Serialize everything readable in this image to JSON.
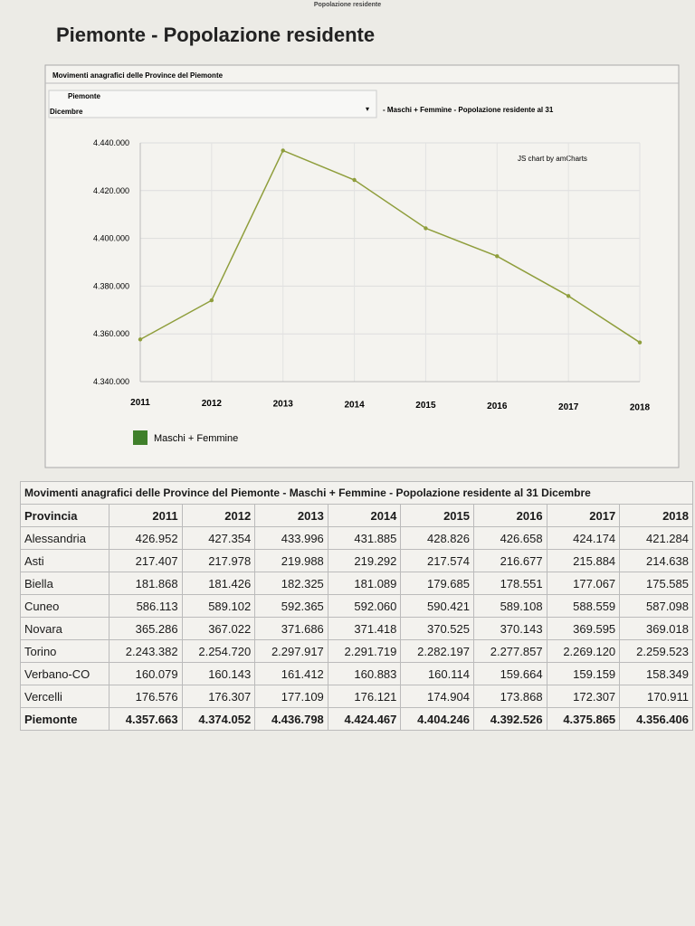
{
  "header": {
    "small_title": "Popolazione residente",
    "title": "Piemonte - Popolazione residente"
  },
  "chart_data": {
    "type": "line",
    "title": "Movimenti anagrafici delle Province del Piemonte",
    "controls": {
      "province": "Piemonte",
      "period": "Dicembre",
      "subtitle": "- Maschi + Femmine - Popolazione residente al 31"
    },
    "credit": "JS chart by amCharts",
    "categories": [
      "2011",
      "2012",
      "2013",
      "2014",
      "2015",
      "2016",
      "2017",
      "2018"
    ],
    "series": [
      {
        "name": "Maschi + Femmine",
        "color": "#8f9e3c",
        "values": [
          4357663,
          4374052,
          4436798,
          4424467,
          4404246,
          4392526,
          4375865,
          4356406
        ]
      }
    ],
    "legend_color": "#3f7f2a",
    "ylim": [
      4340000,
      4440000
    ],
    "yticks": [
      {
        "value": 4340000,
        "label": "4.340.000"
      },
      {
        "value": 4360000,
        "label": "4.360.000"
      },
      {
        "value": 4380000,
        "label": "4.380.000"
      },
      {
        "value": 4400000,
        "label": "4.400.000"
      },
      {
        "value": 4420000,
        "label": "4.420.000"
      },
      {
        "value": 4440000,
        "label": "4.440.000"
      }
    ],
    "grid": true
  },
  "table": {
    "title": "Movimenti anagrafici delle Province del Piemonte - Maschi + Femmine - Popolazione residente al 31 Dicembre",
    "header": [
      "Provincia",
      "2011",
      "2012",
      "2013",
      "2014",
      "2015",
      "2016",
      "2017",
      "2018"
    ],
    "rows": [
      [
        "Alessandria",
        "426.952",
        "427.354",
        "433.996",
        "431.885",
        "428.826",
        "426.658",
        "424.174",
        "421.284"
      ],
      [
        "Asti",
        "217.407",
        "217.978",
        "219.988",
        "219.292",
        "217.574",
        "216.677",
        "215.884",
        "214.638"
      ],
      [
        "Biella",
        "181.868",
        "181.426",
        "182.325",
        "181.089",
        "179.685",
        "178.551",
        "177.067",
        "175.585"
      ],
      [
        "Cuneo",
        "586.113",
        "589.102",
        "592.365",
        "592.060",
        "590.421",
        "589.108",
        "588.559",
        "587.098"
      ],
      [
        "Novara",
        "365.286",
        "367.022",
        "371.686",
        "371.418",
        "370.525",
        "370.143",
        "369.595",
        "369.018"
      ],
      [
        "Torino",
        "2.243.382",
        "2.254.720",
        "2.297.917",
        "2.291.719",
        "2.282.197",
        "2.277.857",
        "2.269.120",
        "2.259.523"
      ],
      [
        "Verbano-CO",
        "160.079",
        "160.143",
        "161.412",
        "160.883",
        "160.114",
        "159.664",
        "159.159",
        "158.349"
      ],
      [
        "Vercelli",
        "176.576",
        "176.307",
        "177.109",
        "176.121",
        "174.904",
        "173.868",
        "172.307",
        "170.911"
      ],
      [
        "Piemonte",
        "4.357.663",
        "4.374.052",
        "4.436.798",
        "4.424.467",
        "4.404.246",
        "4.392.526",
        "4.375.865",
        "4.356.406"
      ]
    ]
  }
}
